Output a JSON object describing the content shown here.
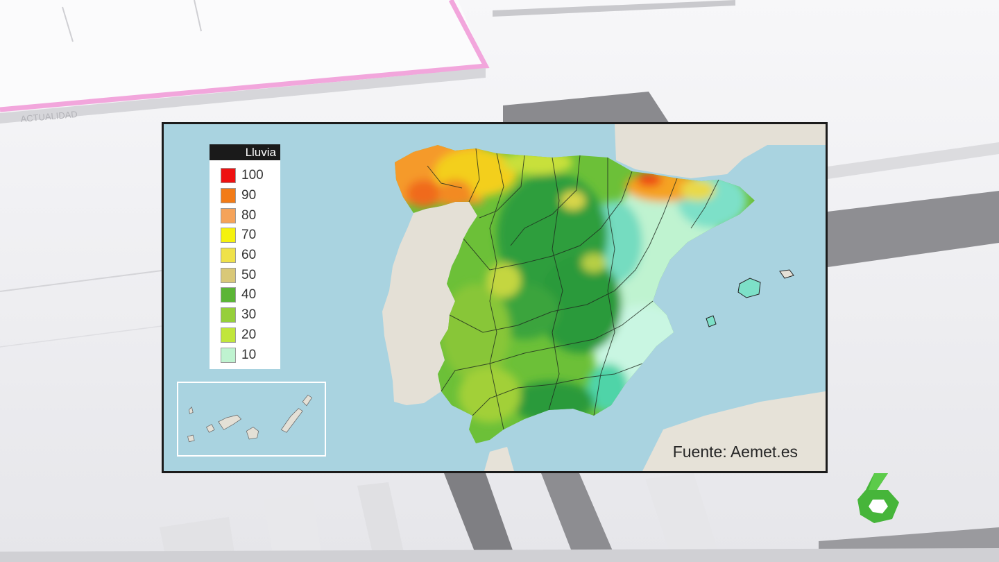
{
  "backdrop": {
    "strip_text": "ACTUALIDAD"
  },
  "legend": {
    "title": "Lluvia",
    "items": [
      {
        "label": "100",
        "color": "#ee1111"
      },
      {
        "label": "90",
        "color": "#f27b17"
      },
      {
        "label": "80",
        "color": "#f5a35a"
      },
      {
        "label": "70",
        "color": "#f5f20e"
      },
      {
        "label": "60",
        "color": "#efe24a"
      },
      {
        "label": "50",
        "color": "#d9c878"
      },
      {
        "label": "40",
        "color": "#5bb535"
      },
      {
        "label": "30",
        "color": "#96cf3a"
      },
      {
        "label": "20",
        "color": "#c1e63b"
      },
      {
        "label": "10",
        "color": "#bff3d0"
      }
    ]
  },
  "map": {
    "sea_color": "#a9d3e0",
    "land_color": "#e4e0d6"
  },
  "source": "Fuente: Aemet.es",
  "channel": {
    "logo_icon": "lasexta-6-logo-icon",
    "logo_color": "#46b53a"
  }
}
